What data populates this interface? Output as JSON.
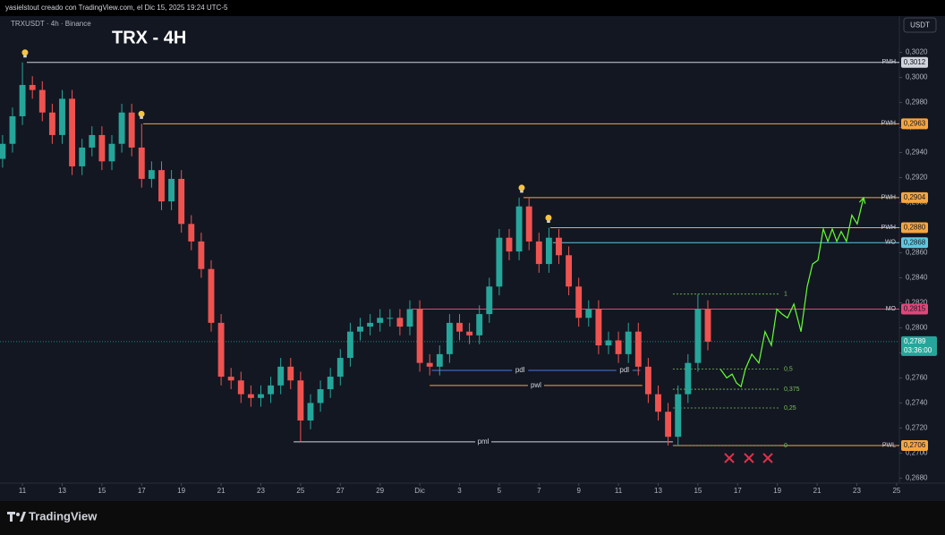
{
  "header": {
    "author_line": "yasielstout creado con TradingView.com, el Dic 15, 2025 19:24 UTC-5",
    "brand": "TradingView"
  },
  "chart_data": {
    "type": "candlestick",
    "title": "TRX - 4H",
    "symbol_line": "TRXUSDT · 4h · Binance",
    "currency": "USDT",
    "up_color": "#26a69a",
    "down_color": "#ef5350",
    "xlim": [
      9.87,
      55.14
    ],
    "ylim": [
      0.2676,
      0.3049
    ],
    "xticks": [
      11,
      13,
      15,
      17,
      19,
      21,
      23,
      25,
      27,
      29,
      {
        "value": 31,
        "label": "Dic"
      },
      {
        "value": 33,
        "label": "3"
      },
      {
        "value": 35,
        "label": "5"
      },
      {
        "value": 37,
        "label": "7"
      },
      {
        "value": 39,
        "label": "9"
      },
      {
        "value": 41,
        "label": "11"
      },
      {
        "value": 43,
        "label": "13"
      },
      {
        "value": 45,
        "label": "15"
      },
      {
        "value": 47,
        "label": "17"
      },
      {
        "value": 49,
        "label": "19"
      },
      {
        "value": 51,
        "label": "21"
      },
      {
        "value": 53,
        "label": "23"
      },
      {
        "value": 55,
        "label": "25"
      }
    ],
    "yticks": [
      {
        "value": 0.268,
        "label": "0,2680"
      },
      {
        "value": 0.27,
        "label": "0,2700"
      },
      {
        "value": 0.272,
        "label": "0,2720"
      },
      {
        "value": 0.274,
        "label": "0,2740"
      },
      {
        "value": 0.276,
        "label": "0,2760"
      },
      {
        "value": 0.278,
        "label": "0,2780"
      },
      {
        "value": 0.28,
        "label": "0,2800"
      },
      {
        "value": 0.282,
        "label": "0,2820"
      },
      {
        "value": 0.284,
        "label": "0,2840"
      },
      {
        "value": 0.286,
        "label": "0,2860"
      },
      {
        "value": 0.288,
        "label": "0,2880"
      },
      {
        "value": 0.29,
        "label": "0,2900"
      },
      {
        "value": 0.292,
        "label": "0,2920"
      },
      {
        "value": 0.294,
        "label": "0,2940"
      },
      {
        "value": 0.296,
        "label": "0,2960"
      },
      {
        "value": 0.298,
        "label": "0,2980"
      },
      {
        "value": 0.3,
        "label": "0,3000"
      },
      {
        "value": 0.302,
        "label": "0,3020"
      }
    ],
    "x": [
      10,
      10.5,
      11,
      11.5,
      12,
      12.5,
      13,
      13.5,
      14,
      14.5,
      15,
      15.5,
      16,
      16.5,
      17,
      17.5,
      18,
      18.5,
      19,
      19.5,
      20,
      20.5,
      21,
      21.5,
      22,
      22.5,
      23,
      23.5,
      24,
      24.5,
      25,
      25.5,
      26,
      26.5,
      27,
      27.5,
      28,
      28.5,
      29,
      29.5,
      30,
      30.5,
      31,
      31.5,
      32,
      32.5,
      33,
      33.5,
      34,
      34.5,
      35,
      35.5,
      36,
      36.5,
      37,
      37.5,
      38,
      38.5,
      39,
      39.5,
      40,
      40.5,
      41,
      41.5,
      42,
      42.5,
      43,
      43.5,
      44,
      44.5,
      45,
      45.5
    ],
    "open": [
      0.2935,
      0.2947,
      0.2969,
      0.2994,
      0.299,
      0.2972,
      0.2954,
      0.2983,
      0.2929,
      0.2944,
      0.2954,
      0.2933,
      0.2947,
      0.2972,
      0.2944,
      0.2919,
      0.2926,
      0.2901,
      0.2919,
      0.2883,
      0.2869,
      0.2847,
      0.2804,
      0.2761,
      0.2758,
      0.2747,
      0.2744,
      0.2747,
      0.2754,
      0.2769,
      0.2758,
      0.2726,
      0.274,
      0.2751,
      0.2761,
      0.2776,
      0.2797,
      0.2801,
      0.2804,
      0.2808,
      0.2808,
      0.2801,
      0.2815,
      0.2772,
      0.2769,
      0.2779,
      0.2804,
      0.2797,
      0.2794,
      0.2811,
      0.2833,
      0.2872,
      0.2861,
      0.2897,
      0.2869,
      0.2851,
      0.2872,
      0.2858,
      0.2833,
      0.2808,
      0.2815,
      0.2786,
      0.279,
      0.2779,
      0.2797,
      0.2769,
      0.2747,
      0.2733,
      0.2713,
      0.2747,
      0.2772,
      0.2815
    ],
    "high": [
      0.2954,
      0.2976,
      0.3012,
      0.3001,
      0.2997,
      0.2979,
      0.299,
      0.299,
      0.2951,
      0.2961,
      0.2961,
      0.2954,
      0.2979,
      0.2979,
      0.2963,
      0.2933,
      0.2933,
      0.2926,
      0.2926,
      0.289,
      0.2876,
      0.2854,
      0.2811,
      0.2768,
      0.2765,
      0.2754,
      0.2754,
      0.2761,
      0.2776,
      0.2776,
      0.2765,
      0.2747,
      0.2758,
      0.2768,
      0.2783,
      0.2804,
      0.2808,
      0.2811,
      0.2815,
      0.2815,
      0.2815,
      0.2822,
      0.2822,
      0.2779,
      0.2786,
      0.2811,
      0.2811,
      0.2804,
      0.2818,
      0.284,
      0.2879,
      0.2879,
      0.2904,
      0.2904,
      0.2876,
      0.288,
      0.2879,
      0.2865,
      0.284,
      0.2822,
      0.2822,
      0.2797,
      0.2797,
      0.2804,
      0.2804,
      0.2776,
      0.2754,
      0.274,
      0.2754,
      0.2779,
      0.2827,
      0.2822
    ],
    "low": [
      0.2928,
      0.294,
      0.2962,
      0.2983,
      0.2965,
      0.2947,
      0.2947,
      0.2922,
      0.2922,
      0.2937,
      0.2926,
      0.2926,
      0.294,
      0.2937,
      0.2912,
      0.2912,
      0.2894,
      0.2894,
      0.2876,
      0.2862,
      0.284,
      0.2797,
      0.2754,
      0.2751,
      0.274,
      0.2737,
      0.2737,
      0.274,
      0.2747,
      0.2751,
      0.2709,
      0.2719,
      0.2733,
      0.2744,
      0.2754,
      0.2769,
      0.279,
      0.2794,
      0.2797,
      0.2801,
      0.2794,
      0.2794,
      0.2765,
      0.2762,
      0.2762,
      0.2772,
      0.279,
      0.2787,
      0.2787,
      0.2804,
      0.2826,
      0.2854,
      0.2854,
      0.2862,
      0.2844,
      0.2844,
      0.2851,
      0.2826,
      0.2801,
      0.2801,
      0.2779,
      0.2779,
      0.2772,
      0.2772,
      0.2762,
      0.274,
      0.2726,
      0.2706,
      0.2706,
      0.274,
      0.2765,
      0.2782
    ],
    "close": [
      0.2947,
      0.2969,
      0.2994,
      0.299,
      0.2972,
      0.2954,
      0.2983,
      0.2929,
      0.2944,
      0.2954,
      0.2933,
      0.2947,
      0.2972,
      0.2944,
      0.2919,
      0.2926,
      0.2901,
      0.2919,
      0.2883,
      0.2869,
      0.2847,
      0.2804,
      0.2761,
      0.2758,
      0.2747,
      0.2744,
      0.2747,
      0.2754,
      0.2769,
      0.2758,
      0.2726,
      0.274,
      0.2751,
      0.2761,
      0.2776,
      0.2797,
      0.2801,
      0.2804,
      0.2808,
      0.2808,
      0.2801,
      0.2815,
      0.2772,
      0.2769,
      0.2779,
      0.2804,
      0.2797,
      0.2794,
      0.2811,
      0.2833,
      0.2872,
      0.2861,
      0.2897,
      0.2869,
      0.2851,
      0.2872,
      0.2858,
      0.2833,
      0.2808,
      0.2815,
      0.2786,
      0.279,
      0.2779,
      0.2797,
      0.2769,
      0.2747,
      0.2733,
      0.2713,
      0.2747,
      0.2772,
      0.2815,
      0.2789
    ],
    "levels": {
      "names": [
        "PMH",
        "PWH",
        "PWH",
        "PWH",
        "WO",
        "MO",
        "PWL"
      ],
      "values": [
        0.3012,
        0.2963,
        0.2904,
        0.288,
        0.2868,
        0.2815,
        0.2706
      ],
      "value_labels": [
        "0,3012",
        "0,2963",
        "0,2904",
        "0,2880",
        "0,2868",
        "0,2815",
        "0,2706"
      ],
      "starts": [
        11.22,
        17.08,
        36.22,
        37.57,
        37.7,
        30.59,
        43.74
      ],
      "colors": [
        "#d1d4dc",
        "#f7a540",
        "#f7a540",
        "#f7a540",
        "#5ec8e0",
        "#e2457a",
        "#f7a540"
      ]
    },
    "segments": {
      "names": [
        "pdl",
        "pdl",
        "pwl",
        "pml"
      ],
      "values": [
        0.2766,
        0.2766,
        0.2754,
        0.2709
      ],
      "starts": [
        31.6,
        40.5,
        31.5,
        24.65
      ],
      "ends": [
        40.5,
        42.1,
        42.2,
        43.74
      ],
      "colors": [
        "#4a7bd0",
        "#4a7bd0",
        "#f7a540",
        "#d1d4dc"
      ]
    },
    "fib": {
      "ratios": [
        1,
        0.5,
        0.375,
        0.25,
        0
      ],
      "ratio_labels": [
        "1",
        "0,5",
        "0,375",
        "0,25",
        "0"
      ],
      "prices": [
        0.2827,
        0.2767,
        0.2751,
        0.2736,
        0.2706
      ],
      "start": 43.74,
      "end": 49.06,
      "color": "#7bbf5a"
    },
    "projection": {
      "color": "#66ff33",
      "x": [
        46.13,
        46.45,
        46.72,
        46.94,
        47.17,
        47.39,
        47.71,
        48.07,
        48.38,
        48.7,
        48.97,
        49.24,
        49.51,
        49.83,
        50.19,
        50.5,
        50.77,
        51.04,
        51.31,
        51.54,
        51.76,
        51.99,
        52.21,
        52.48,
        52.75,
        53.02,
        53.34
      ],
      "y": [
        0.2767,
        0.276,
        0.2763,
        0.2756,
        0.2753,
        0.2767,
        0.2779,
        0.2772,
        0.2797,
        0.2786,
        0.2815,
        0.2811,
        0.2808,
        0.2819,
        0.2797,
        0.2833,
        0.2851,
        0.2854,
        0.2879,
        0.2869,
        0.2879,
        0.2869,
        0.2877,
        0.2869,
        0.289,
        0.2883,
        0.2904
      ]
    },
    "crosses": {
      "color": "#e0314b",
      "x": [
        46.58,
        47.57,
        48.52
      ],
      "y": [
        0.2696,
        0.2696,
        0.2696
      ]
    },
    "price": {
      "value": 0.2789,
      "label": "0,2789",
      "countdown": "03:36:00",
      "color": "#26a69a"
    }
  }
}
